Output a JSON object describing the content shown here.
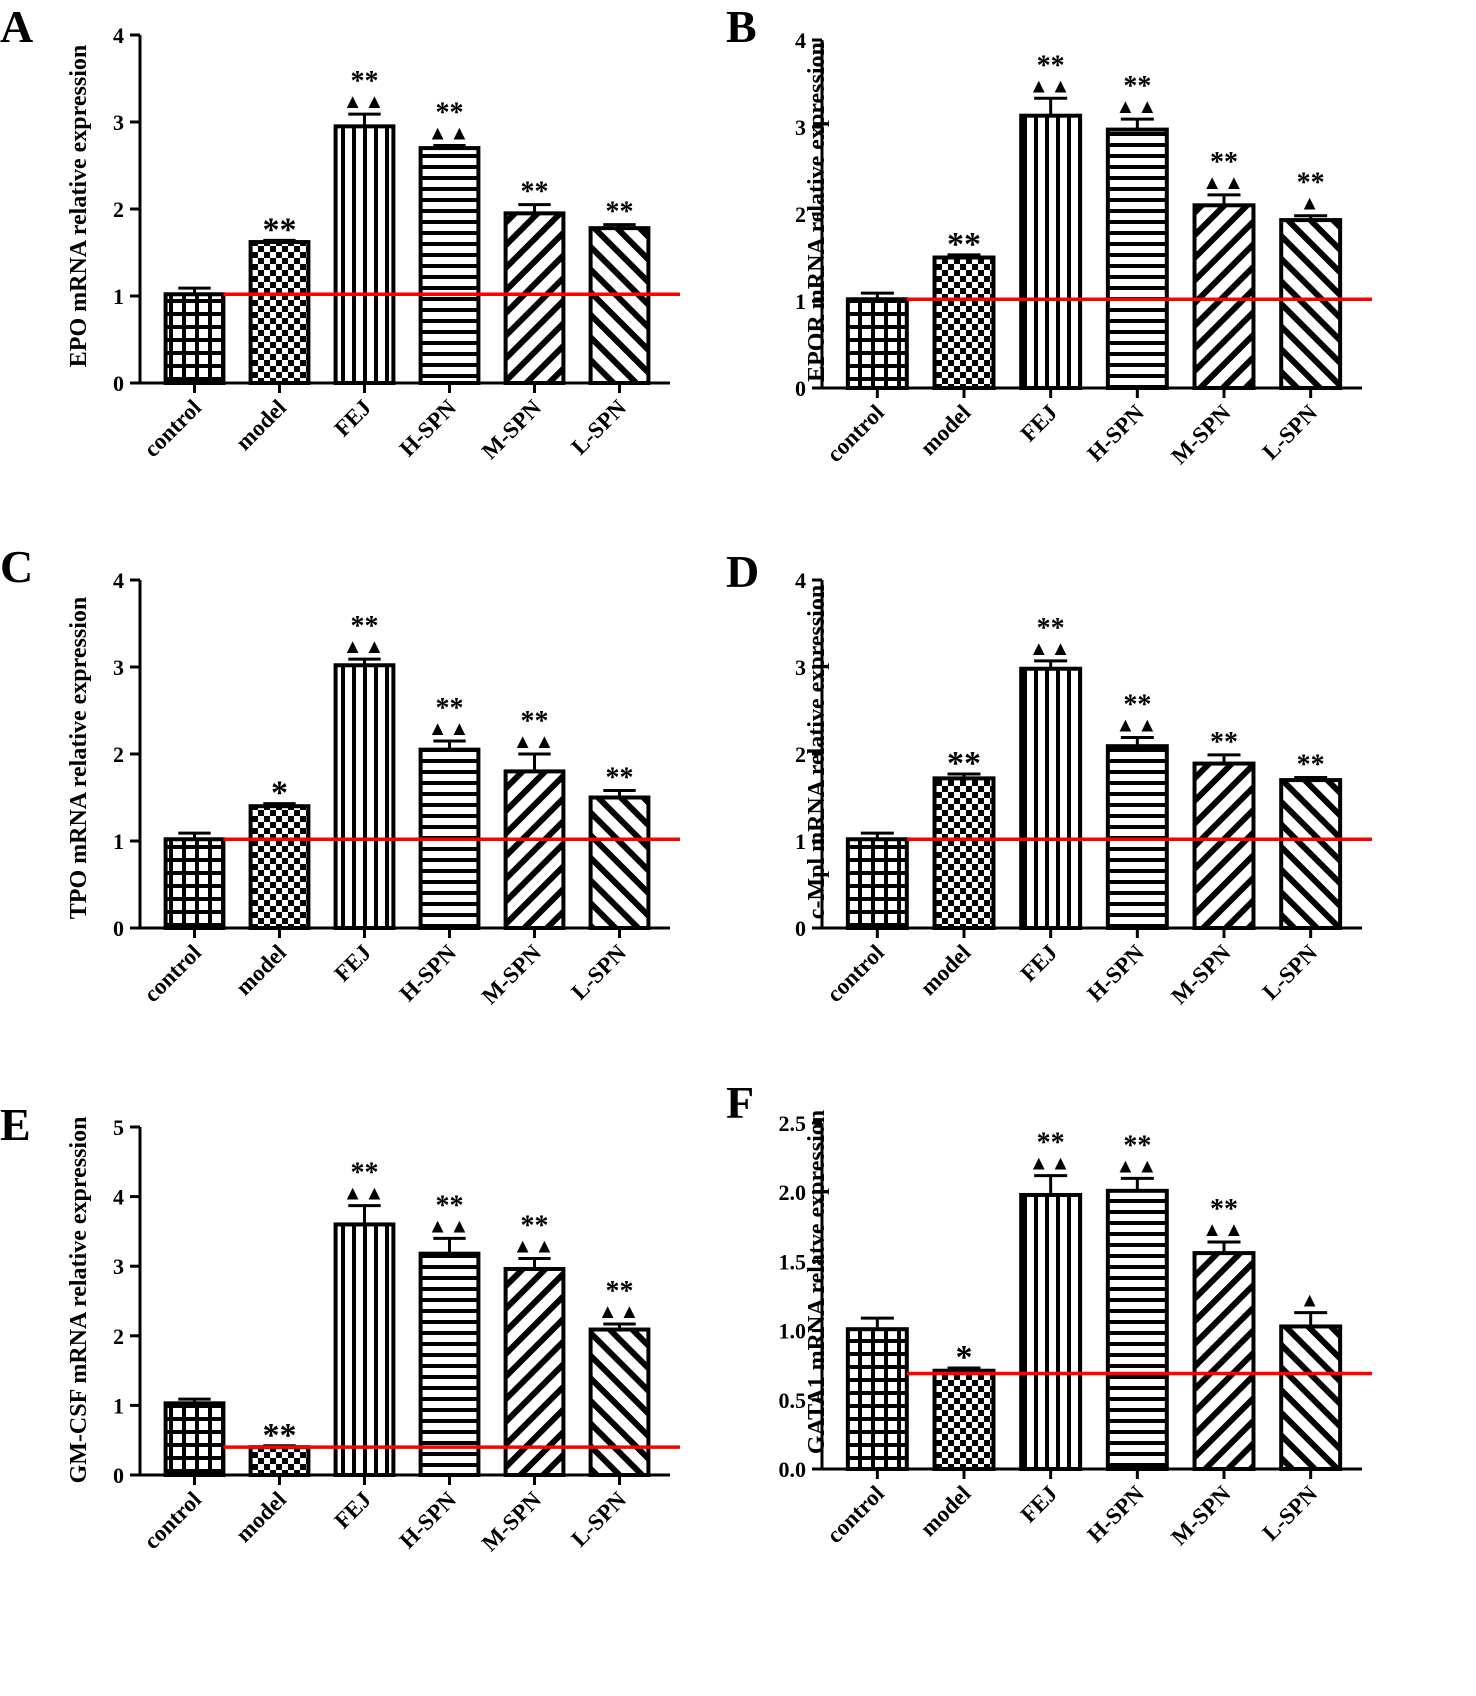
{
  "figure": {
    "colors": {
      "ink": "#000000",
      "reference_line": "#ff0000",
      "background": "#ffffff"
    }
  },
  "chart_data": [
    {
      "panel": "A",
      "type": "bar",
      "ylabel": "EPO mRNA relative expression",
      "categories": [
        "control",
        "model",
        "FEJ",
        "H-SPN",
        "M-SPN",
        "L-SPN"
      ],
      "patterns": [
        "grid",
        "checker",
        "vertical",
        "horizontal",
        "diag-right",
        "diag-left"
      ],
      "values": [
        1.02,
        1.62,
        2.95,
        2.7,
        1.95,
        1.78
      ],
      "errors": [
        0.07,
        0.02,
        0.14,
        0.03,
        0.1,
        0.04
      ],
      "ylim": [
        0,
        4
      ],
      "ticks": [
        "0",
        "1",
        "2",
        "3",
        "4"
      ],
      "reference_line": 1.02,
      "significance": [
        "",
        "**",
        "**",
        "**",
        "**",
        "**"
      ],
      "markers": [
        "",
        "",
        "▲▲",
        "▲▲",
        "",
        ""
      ]
    },
    {
      "panel": "B",
      "type": "bar",
      "ylabel": "EPOR mRNA relative expression",
      "categories": [
        "control",
        "model",
        "FEJ",
        "H-SPN",
        "M-SPN",
        "L-SPN"
      ],
      "patterns": [
        "grid",
        "checker",
        "vertical",
        "horizontal",
        "diag-right",
        "diag-left"
      ],
      "values": [
        1.02,
        1.5,
        3.13,
        2.97,
        2.1,
        1.93
      ],
      "errors": [
        0.07,
        0.03,
        0.2,
        0.12,
        0.12,
        0.05
      ],
      "ylim": [
        0,
        4
      ],
      "ticks": [
        "0",
        "1",
        "2",
        "3",
        "4"
      ],
      "reference_line": 1.02,
      "significance": [
        "",
        "**",
        "**",
        "**",
        "**",
        "**"
      ],
      "markers": [
        "",
        "",
        "▲▲",
        "▲▲",
        "▲▲",
        "▲"
      ]
    },
    {
      "panel": "C",
      "type": "bar",
      "ylabel": "TPO mRNA relative expression",
      "categories": [
        "control",
        "model",
        "FEJ",
        "H-SPN",
        "M-SPN",
        "L-SPN"
      ],
      "patterns": [
        "grid",
        "checker",
        "vertical",
        "horizontal",
        "diag-right",
        "diag-left"
      ],
      "values": [
        1.02,
        1.4,
        3.02,
        2.05,
        1.8,
        1.5
      ],
      "errors": [
        0.07,
        0.03,
        0.07,
        0.1,
        0.2,
        0.08
      ],
      "ylim": [
        0,
        4
      ],
      "ticks": [
        "0",
        "1",
        "2",
        "3",
        "4"
      ],
      "reference_line": 1.02,
      "significance": [
        "",
        "*",
        "**",
        "**",
        "**",
        "**"
      ],
      "markers": [
        "",
        "",
        "▲▲",
        "▲▲",
        "▲▲",
        ""
      ]
    },
    {
      "panel": "D",
      "type": "bar",
      "ylabel": "c-Mpl mRNA relative expression",
      "categories": [
        "control",
        "model",
        "FEJ",
        "H-SPN",
        "M-SPN",
        "L-SPN"
      ],
      "patterns": [
        "grid",
        "checker",
        "vertical",
        "horizontal",
        "diag-right",
        "diag-left"
      ],
      "values": [
        1.02,
        1.72,
        2.98,
        2.09,
        1.89,
        1.7
      ],
      "errors": [
        0.07,
        0.05,
        0.09,
        0.1,
        0.1,
        0.03
      ],
      "ylim": [
        0,
        4
      ],
      "ticks": [
        "0",
        "1",
        "2",
        "3",
        "4"
      ],
      "reference_line": 1.02,
      "significance": [
        "",
        "**",
        "**",
        "**",
        "**",
        "**"
      ],
      "markers": [
        "",
        "",
        "▲▲",
        "▲▲",
        "",
        ""
      ]
    },
    {
      "panel": "E",
      "type": "bar",
      "ylabel": "GM-CSF mRNA relative expression",
      "categories": [
        "control",
        "model",
        "FEJ",
        "H-SPN",
        "M-SPN",
        "L-SPN"
      ],
      "patterns": [
        "grid",
        "checker",
        "vertical",
        "horizontal",
        "diag-right",
        "diag-left"
      ],
      "values": [
        1.03,
        0.4,
        3.6,
        3.18,
        2.96,
        2.09
      ],
      "errors": [
        0.06,
        0.02,
        0.27,
        0.22,
        0.15,
        0.08
      ],
      "ylim": [
        0,
        5
      ],
      "ticks": [
        "0",
        "1",
        "2",
        "3",
        "4",
        "5"
      ],
      "reference_line": 0.4,
      "significance": [
        "",
        "**",
        "**",
        "**",
        "**",
        "**"
      ],
      "markers": [
        "",
        "",
        "▲▲",
        "▲▲",
        "▲▲",
        "▲▲"
      ]
    },
    {
      "panel": "F",
      "type": "bar",
      "ylabel": "GATA1 mRNA relatve expression",
      "categories": [
        "control",
        "model",
        "FEJ",
        "H-SPN",
        "M-SPN",
        "L-SPN"
      ],
      "patterns": [
        "grid",
        "checker",
        "vertical",
        "horizontal",
        "diag-right",
        "diag-left"
      ],
      "values": [
        1.01,
        0.71,
        1.98,
        2.01,
        1.56,
        1.03
      ],
      "errors": [
        0.08,
        0.02,
        0.14,
        0.09,
        0.08,
        0.1
      ],
      "ylim": [
        0,
        2.5
      ],
      "ticks": [
        "0.0",
        "0.5",
        "1.0",
        "1.5",
        "2.0",
        "2.5"
      ],
      "reference_line": 0.69,
      "significance": [
        "",
        "*",
        "**",
        "**",
        "**",
        ""
      ],
      "markers": [
        "",
        "",
        "▲▲",
        "▲▲",
        "▲▲",
        "▲"
      ]
    }
  ]
}
